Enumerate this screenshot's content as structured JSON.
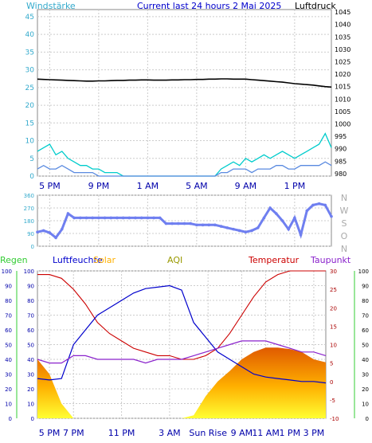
{
  "chart_data": [
    {
      "type": "line",
      "title": "Current last 24 hours 2 Mai 2025",
      "left_label": "Windstärke",
      "right_label": "Luftdruck",
      "left_ticks": [
        "0",
        "5",
        "10",
        "15",
        "20",
        "25",
        "30",
        "35",
        "40",
        "45"
      ],
      "right_ticks": [
        "980",
        "985",
        "990",
        "995",
        "1000",
        "1005",
        "1010",
        "1015",
        "1020",
        "1025",
        "1030",
        "1035",
        "1040",
        "1045"
      ],
      "x_ticks": [
        "5 PM",
        "9 PM",
        "1 AM",
        "5 AM",
        "9 AM",
        "1 PM"
      ],
      "ylim_left": [
        0,
        47
      ],
      "ylim_right": [
        979,
        1046
      ],
      "colors": {
        "pressure": "#000000",
        "gust": "#00cccc",
        "wind": "#5a8ae0",
        "left_axis": "#33aacc",
        "right_axis": "#000000"
      },
      "series": [
        {
          "key": "pressure",
          "axis": "right",
          "x": [
            0,
            0.5,
            1,
            1.5,
            2,
            2.5,
            3,
            3.5,
            4,
            4.5,
            5,
            5.5,
            6,
            6.5,
            7,
            7.5,
            8,
            8.5,
            9,
            9.5,
            10,
            10.5,
            11,
            11.5,
            12,
            12.5,
            13,
            13.5,
            14,
            14.5,
            15,
            15.5,
            16,
            16.5,
            17,
            17.5,
            18,
            18.5,
            19,
            19.5,
            20,
            20.5,
            21,
            21.5,
            22,
            22.5,
            23,
            23.5,
            24
          ],
          "values": [
            1018.0,
            1017.9,
            1017.8,
            1017.7,
            1017.6,
            1017.5,
            1017.4,
            1017.3,
            1017.2,
            1017.2,
            1017.3,
            1017.3,
            1017.4,
            1017.5,
            1017.5,
            1017.6,
            1017.6,
            1017.7,
            1017.7,
            1017.6,
            1017.6,
            1017.6,
            1017.7,
            1017.7,
            1017.8,
            1017.8,
            1017.9,
            1017.9,
            1018.0,
            1018.0,
            1018.1,
            1018.1,
            1018.0,
            1018.0,
            1018.0,
            1017.8,
            1017.6,
            1017.4,
            1017.2,
            1017.0,
            1016.8,
            1016.5,
            1016.2,
            1016.0,
            1015.8,
            1015.6,
            1015.3,
            1015.0,
            1014.8
          ]
        },
        {
          "key": "gust",
          "axis": "left",
          "x": [
            0,
            0.5,
            1,
            1.5,
            2,
            2.5,
            3,
            3.5,
            4,
            4.5,
            5,
            5.5,
            6,
            6.5,
            7,
            7.5,
            8,
            8.5,
            9,
            9.5,
            10,
            10.5,
            11,
            11.5,
            12,
            12.5,
            13,
            13.5,
            14,
            14.5,
            15,
            15.5,
            16,
            16.5,
            17,
            17.5,
            18,
            18.5,
            19,
            19.5,
            20,
            20.5,
            21,
            21.5,
            22,
            22.5,
            23,
            23.5,
            24
          ],
          "values": [
            7,
            8,
            9,
            6,
            7,
            5,
            4,
            3,
            3,
            2,
            2,
            1,
            1,
            1,
            0,
            0,
            0,
            0,
            0,
            0,
            0,
            0,
            0,
            0,
            0,
            0,
            0,
            0,
            0,
            0,
            2,
            3,
            4,
            3,
            5,
            4,
            5,
            6,
            5,
            6,
            7,
            6,
            5,
            6,
            7,
            8,
            9,
            12,
            8
          ]
        },
        {
          "key": "wind",
          "axis": "left",
          "x": [
            0,
            0.5,
            1,
            1.5,
            2,
            2.5,
            3,
            3.5,
            4,
            4.5,
            5,
            5.5,
            6,
            6.5,
            7,
            7.5,
            8,
            8.5,
            9,
            9.5,
            10,
            10.5,
            11,
            11.5,
            12,
            12.5,
            13,
            13.5,
            14,
            14.5,
            15,
            15.5,
            16,
            16.5,
            17,
            17.5,
            18,
            18.5,
            19,
            19.5,
            20,
            20.5,
            21,
            21.5,
            22,
            22.5,
            23,
            23.5,
            24
          ],
          "values": [
            2,
            3,
            2,
            2,
            3,
            2,
            1,
            1,
            1,
            1,
            0,
            0,
            0,
            0,
            0,
            0,
            0,
            0,
            0,
            0,
            0,
            0,
            0,
            0,
            0,
            0,
            0,
            0,
            0,
            0,
            1,
            1,
            2,
            2,
            2,
            1,
            2,
            2,
            2,
            3,
            3,
            2,
            2,
            3,
            3,
            3,
            3,
            4,
            3
          ]
        }
      ]
    },
    {
      "type": "scatter",
      "left_ticks": [
        "0",
        "90",
        "180",
        "270",
        "360"
      ],
      "right_ticks": [
        "N",
        "W",
        "S",
        "O",
        "N"
      ],
      "ylim": [
        0,
        360
      ],
      "x_ticks": [],
      "colors": {
        "direction": "#6f7ff0"
      },
      "series": [
        {
          "key": "direction",
          "x": [
            0,
            0.5,
            1,
            1.5,
            2,
            2.5,
            3,
            3.5,
            4,
            4.5,
            5,
            5.5,
            6,
            6.5,
            7,
            7.5,
            8,
            8.5,
            9,
            9.5,
            10,
            10.5,
            11,
            11.5,
            12,
            12.5,
            13,
            13.5,
            14,
            14.5,
            15,
            15.5,
            16,
            16.5,
            17,
            17.5,
            18,
            18.5,
            19,
            19.5,
            20,
            20.5,
            21,
            21.5,
            22,
            22.5,
            23,
            23.5,
            24
          ],
          "values": [
            100,
            110,
            95,
            60,
            120,
            230,
            200,
            200,
            200,
            200,
            200,
            200,
            200,
            200,
            200,
            200,
            200,
            200,
            200,
            200,
            200,
            160,
            160,
            160,
            160,
            160,
            150,
            150,
            150,
            150,
            140,
            130,
            120,
            110,
            100,
            110,
            130,
            200,
            270,
            230,
            180,
            120,
            200,
            80,
            250,
            290,
            300,
            290,
            210
          ]
        }
      ]
    },
    {
      "type": "line",
      "legend": [
        "Regen",
        "Luftfeuchte",
        "Solar",
        "AQI",
        "Temperatur",
        "Taupunkt"
      ],
      "left_ticks": [
        "0",
        "10",
        "20",
        "30",
        "40",
        "50",
        "60",
        "70",
        "80",
        "90",
        "100"
      ],
      "right_ticks": [
        "-10",
        "-5",
        "0",
        "5",
        "10",
        "15",
        "20",
        "25",
        "30"
      ],
      "x_ticks": [
        "5 PM",
        "7 PM",
        "11 PM",
        "3 AM",
        "Sun Rise",
        "9 AM",
        "11 AM",
        "1 PM",
        "3 PM"
      ],
      "ylim_left": [
        0,
        100
      ],
      "ylim_right": [
        -10,
        30
      ],
      "colors": {
        "humidity": "#0000cc",
        "temperature": "#cc0000",
        "dewpoint": "#8a22cc",
        "solar": "#ffb000",
        "rain": "#33cc33",
        "aqi": "#999900",
        "left_axis": "#0000aa",
        "right_axis": "#aa0000",
        "far_left": "#33cc33",
        "far_right": "#000000"
      },
      "series": [
        {
          "key": "temperature",
          "x": [
            0,
            1,
            2,
            3,
            4,
            5,
            6,
            7,
            8,
            9,
            10,
            11,
            12,
            13,
            14,
            15,
            16,
            17,
            18,
            19,
            20,
            21,
            22,
            23,
            24
          ],
          "values": [
            29,
            29,
            28,
            25,
            21,
            16,
            13,
            11,
            9,
            8,
            7,
            7,
            6,
            6,
            7,
            9,
            13,
            18,
            23,
            27,
            29,
            30,
            30,
            30,
            30
          ]
        },
        {
          "key": "humidity",
          "x": [
            0,
            1,
            2,
            3,
            4,
            5,
            6,
            7,
            8,
            9,
            10,
            11,
            12,
            13,
            14,
            15,
            16,
            17,
            18,
            19,
            20,
            21,
            22,
            23,
            24
          ],
          "values": [
            27,
            26,
            27,
            50,
            60,
            70,
            75,
            80,
            85,
            88,
            89,
            90,
            87,
            65,
            55,
            45,
            40,
            35,
            30,
            28,
            27,
            26,
            25,
            25,
            24
          ]
        },
        {
          "key": "dewpoint",
          "x": [
            0,
            1,
            2,
            3,
            4,
            5,
            6,
            7,
            8,
            9,
            10,
            11,
            12,
            13,
            14,
            15,
            16,
            17,
            18,
            19,
            20,
            21,
            22,
            23,
            24
          ],
          "values": [
            6,
            5,
            5,
            7,
            7,
            6,
            6,
            6,
            6,
            5,
            6,
            6,
            6,
            7,
            8,
            9,
            10,
            11,
            11,
            11,
            10,
            9,
            8,
            8,
            7
          ]
        },
        {
          "key": "solar",
          "x": [
            0,
            1,
            2,
            3,
            4,
            5,
            6,
            7,
            8,
            9,
            10,
            11,
            12,
            13,
            14,
            15,
            16,
            17,
            18,
            19,
            20,
            21,
            22,
            23,
            24
          ],
          "values": [
            40,
            30,
            10,
            0,
            0,
            0,
            0,
            0,
            0,
            0,
            0,
            0,
            0,
            2,
            15,
            25,
            32,
            40,
            45,
            48,
            48,
            47,
            45,
            40,
            38
          ]
        }
      ]
    }
  ]
}
